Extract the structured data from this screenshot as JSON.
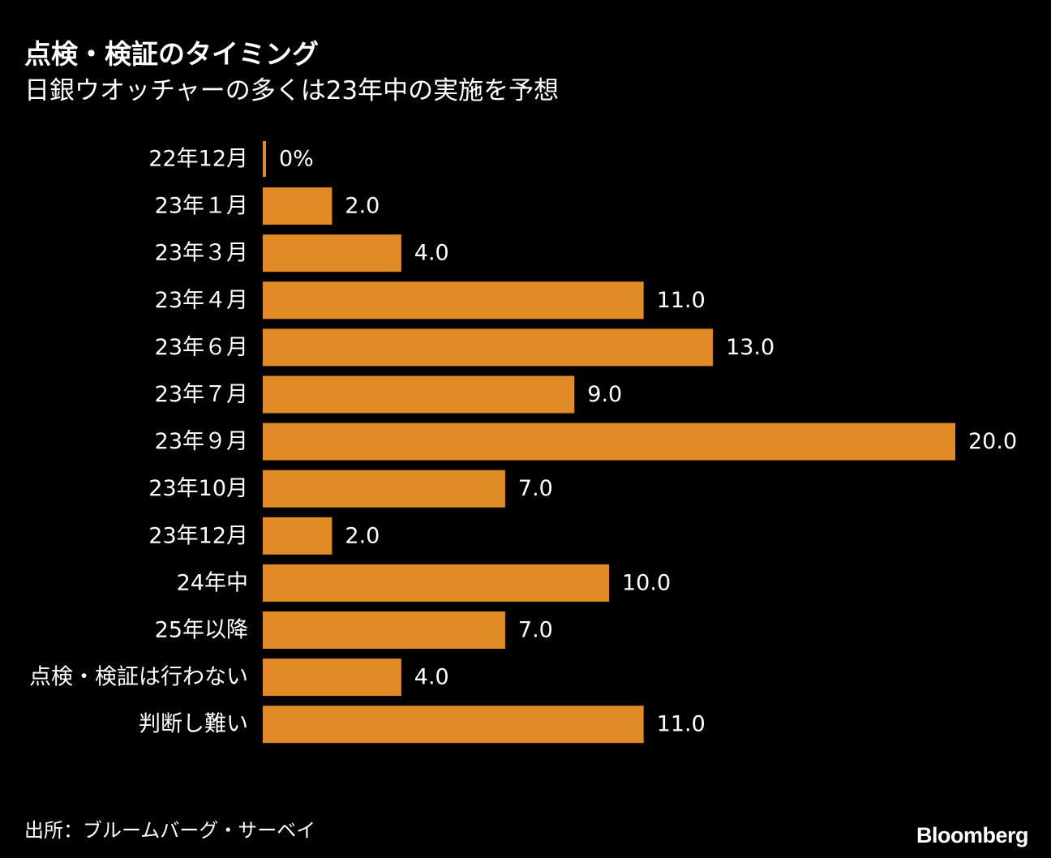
{
  "title": "点検・検証のタイミング",
  "subtitle": "日銀ウオッチャーの多くは23年中の実施を予想",
  "source": "出所：ブルームバーグ・サーベイ",
  "brand": "Bloomberg",
  "colors": {
    "background": "#000000",
    "bar": "#e08b26",
    "text": "#ffffff"
  },
  "chart_data": {
    "type": "bar",
    "orientation": "horizontal",
    "categories": [
      "22年12月",
      "23年１月",
      "23年３月",
      "23年４月",
      "23年６月",
      "23年７月",
      "23年９月",
      "23年10月",
      "23年12月",
      "24年中",
      "25年以降",
      "点検・検証は行わない",
      "判断し難い"
    ],
    "values": [
      0,
      2.0,
      4.0,
      11.0,
      13.0,
      9.0,
      20.0,
      7.0,
      2.0,
      10.0,
      7.0,
      4.0,
      11.0
    ],
    "value_labels": [
      "0%",
      "2.0",
      "4.0",
      "11.0",
      "13.0",
      "9.0",
      "20.0",
      "7.0",
      "2.0",
      "10.0",
      "7.0",
      "4.0",
      "11.0"
    ],
    "unit": "%",
    "xlim": [
      0,
      20
    ],
    "grid": false,
    "title": "点検・検証のタイミング",
    "subtitle": "日銀ウオッチャーの多くは23年中の実施を予想"
  }
}
